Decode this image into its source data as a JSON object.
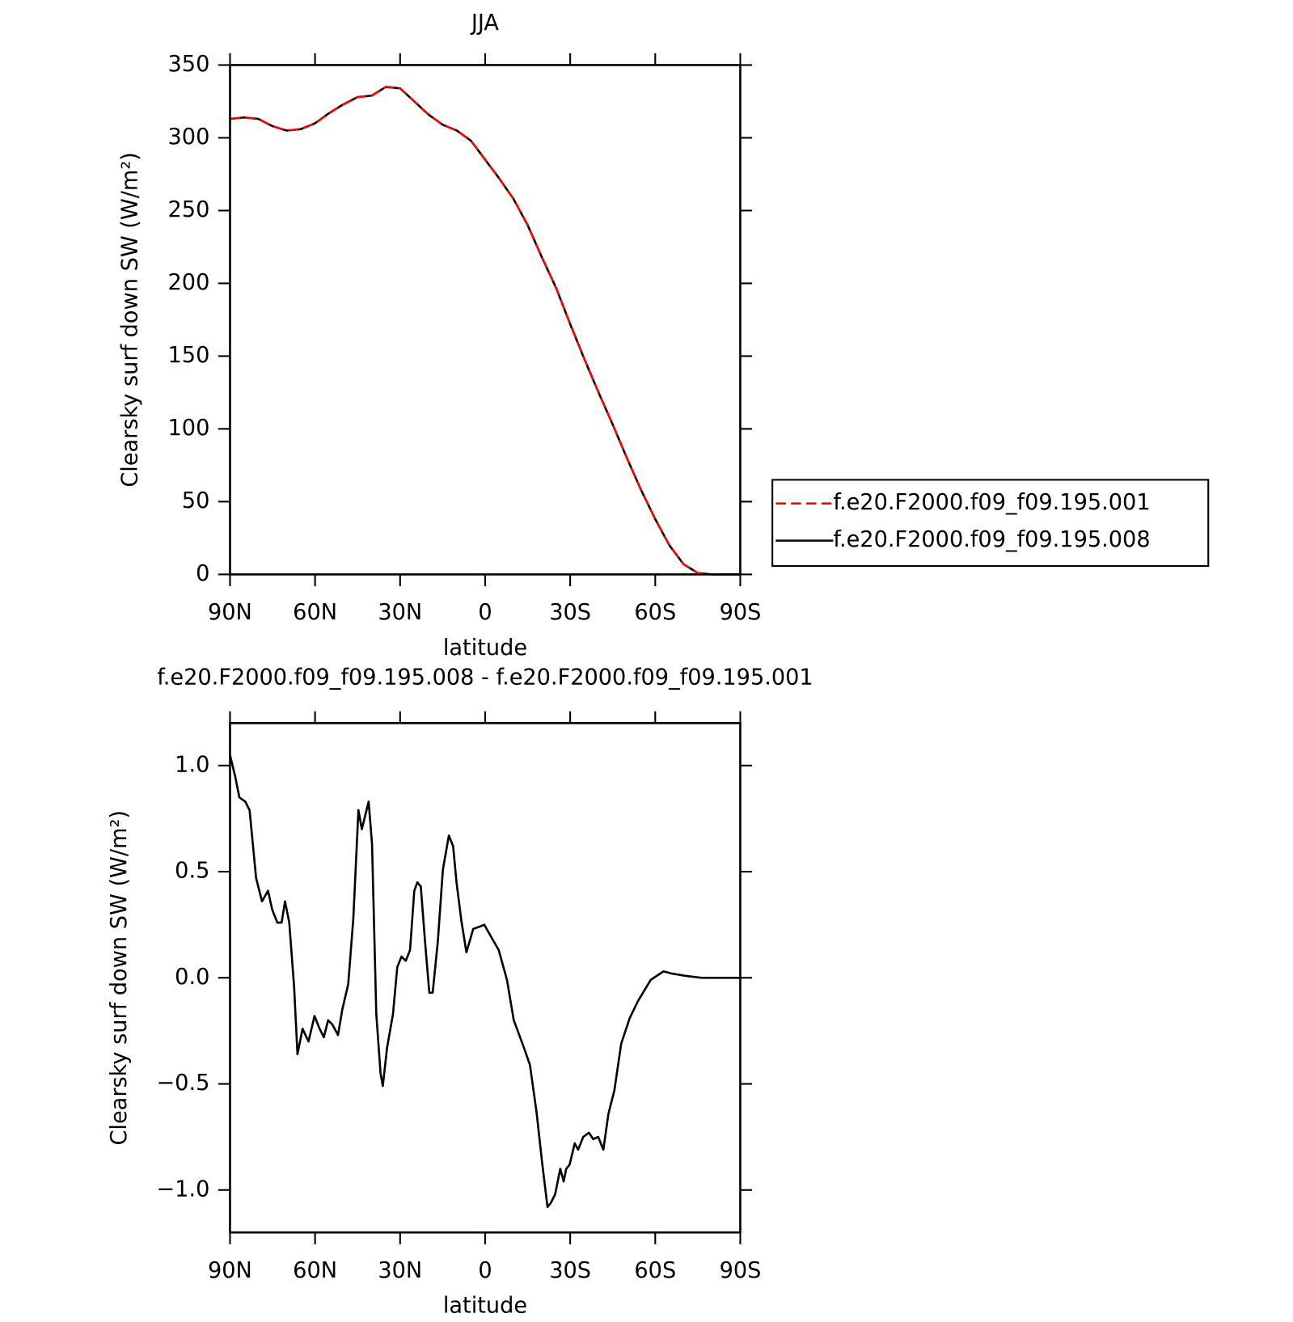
{
  "chart_data": [
    {
      "type": "line",
      "title": "JJA",
      "xlabel": "latitude",
      "ylabel": "Clearsky surf down SW (W/m²)",
      "x": [
        90,
        85,
        80,
        75,
        70,
        65,
        60,
        55,
        50,
        45,
        40,
        35,
        30,
        25,
        20,
        15,
        10,
        5,
        0,
        -5,
        -10,
        -15,
        -20,
        -25,
        -30,
        -35,
        -40,
        -45,
        -50,
        -55,
        -60,
        -65,
        -70,
        -75,
        -80,
        -85,
        -90
      ],
      "series": [
        {
          "name": "f.e20.F2000.f09_f09.195.001",
          "color": "#ff0000",
          "dash": true,
          "values": [
            313,
            314,
            313,
            308,
            305,
            306,
            310,
            317,
            323,
            328,
            329,
            335,
            334,
            325,
            316,
            309,
            305,
            298,
            285,
            272,
            258,
            240,
            218,
            197,
            172,
            148,
            125,
            103,
            80,
            58,
            38,
            20,
            7,
            1,
            0,
            0,
            0
          ]
        },
        {
          "name": "f.e20.F2000.f09_f09.195.008",
          "color": "#000000",
          "dash": false,
          "values": [
            313,
            314,
            313,
            308,
            305,
            306,
            310,
            317,
            323,
            328,
            329,
            335,
            334,
            325,
            316,
            309,
            305,
            298,
            285,
            272,
            258,
            240,
            218,
            197,
            172,
            148,
            125,
            103,
            80,
            58,
            38,
            20,
            7,
            1,
            0,
            0,
            0
          ]
        }
      ],
      "xlim": [
        90,
        -90
      ],
      "xticks": [
        {
          "value": 90,
          "label": "90N"
        },
        {
          "value": 60,
          "label": "60N"
        },
        {
          "value": 30,
          "label": "30N"
        },
        0,
        {
          "value": -30,
          "label": "30S"
        },
        {
          "value": -60,
          "label": "60S"
        },
        {
          "value": -90,
          "label": "90S"
        }
      ],
      "ylim": [
        0,
        350
      ],
      "yticks": [
        0,
        50,
        100,
        150,
        200,
        250,
        300,
        350
      ],
      "legend": "right"
    },
    {
      "type": "line",
      "title": "f.e20.F2000.f09_f09.195.008 - f.e20.F2000.f09_f09.195.001",
      "xlabel": "latitude",
      "ylabel": "Clearsky surf down SW (W/m²)",
      "x": [
        90,
        88.2,
        86.7,
        84.6,
        83.1,
        80.8,
        78.7,
        76.6,
        75.1,
        73.3,
        71.8,
        70.6,
        69.1,
        67.4,
        66.2,
        64.4,
        62.3,
        60.2,
        58.4,
        56.9,
        55.4,
        53.9,
        51.9,
        50.4,
        48.3,
        46.5,
        44.7,
        43.5,
        41.1,
        39.9,
        38.4,
        36.9,
        36.1,
        34.6,
        32.5,
        31.0,
        29.5,
        28.0,
        26.5,
        25.0,
        23.9,
        22.7,
        21.2,
        19.7,
        18.5,
        16.7,
        14.9,
        12.8,
        11.3,
        10.1,
        8.4,
        6.6,
        4.2,
        2.1,
        0.3,
        -1.8,
        -4.8,
        -7.7,
        -10.1,
        -13.7,
        -15.8,
        -18.2,
        -20.0,
        -22.0,
        -23.2,
        -24.7,
        -26.5,
        -27.7,
        -28.6,
        -29.8,
        -31.6,
        -32.8,
        -34.6,
        -36.6,
        -38.1,
        -39.9,
        -41.7,
        -43.5,
        -45.6,
        -48.0,
        -51.0,
        -53.9,
        -58.4,
        -62.9,
        -65.8,
        -70.3,
        -76.3,
        -90
      ],
      "series": [
        {
          "name": "difference",
          "color": "#000000",
          "dash": false,
          "values": [
            1.05,
            0.95,
            0.85,
            0.83,
            0.79,
            0.47,
            0.36,
            0.41,
            0.32,
            0.26,
            0.26,
            0.36,
            0.26,
            -0.04,
            -0.36,
            -0.24,
            -0.3,
            -0.18,
            -0.24,
            -0.28,
            -0.2,
            -0.22,
            -0.27,
            -0.15,
            -0.03,
            0.28,
            0.79,
            0.7,
            0.83,
            0.63,
            -0.17,
            -0.45,
            -0.51,
            -0.33,
            -0.17,
            0.05,
            0.1,
            0.08,
            0.13,
            0.41,
            0.45,
            0.43,
            0.17,
            -0.07,
            -0.07,
            0.17,
            0.51,
            0.67,
            0.62,
            0.45,
            0.27,
            0.12,
            0.23,
            0.24,
            0.25,
            0.2,
            0.13,
            -0.01,
            -0.2,
            -0.33,
            -0.41,
            -0.64,
            -0.86,
            -1.08,
            -1.06,
            -1.02,
            -0.9,
            -0.96,
            -0.9,
            -0.88,
            -0.78,
            -0.81,
            -0.75,
            -0.73,
            -0.76,
            -0.75,
            -0.81,
            -0.64,
            -0.53,
            -0.31,
            -0.19,
            -0.11,
            -0.01,
            0.03,
            0.02,
            0.01,
            0.0,
            0.0
          ]
        }
      ],
      "xlim": [
        90,
        -90
      ],
      "xticks": [
        {
          "value": 90,
          "label": "90N"
        },
        {
          "value": 60,
          "label": "60N"
        },
        {
          "value": 30,
          "label": "30N"
        },
        0,
        {
          "value": -30,
          "label": "30S"
        },
        {
          "value": -60,
          "label": "60S"
        },
        {
          "value": -90,
          "label": "90S"
        }
      ],
      "ylim": [
        -1.2,
        1.2
      ],
      "yticks": [
        {
          "value": -1,
          "label": "−1.0"
        },
        {
          "value": -0.5,
          "label": "−0.5"
        },
        {
          "value": 0,
          "label": "0.0"
        },
        0.5,
        {
          "value": 1,
          "label": "1.0"
        }
      ]
    }
  ]
}
